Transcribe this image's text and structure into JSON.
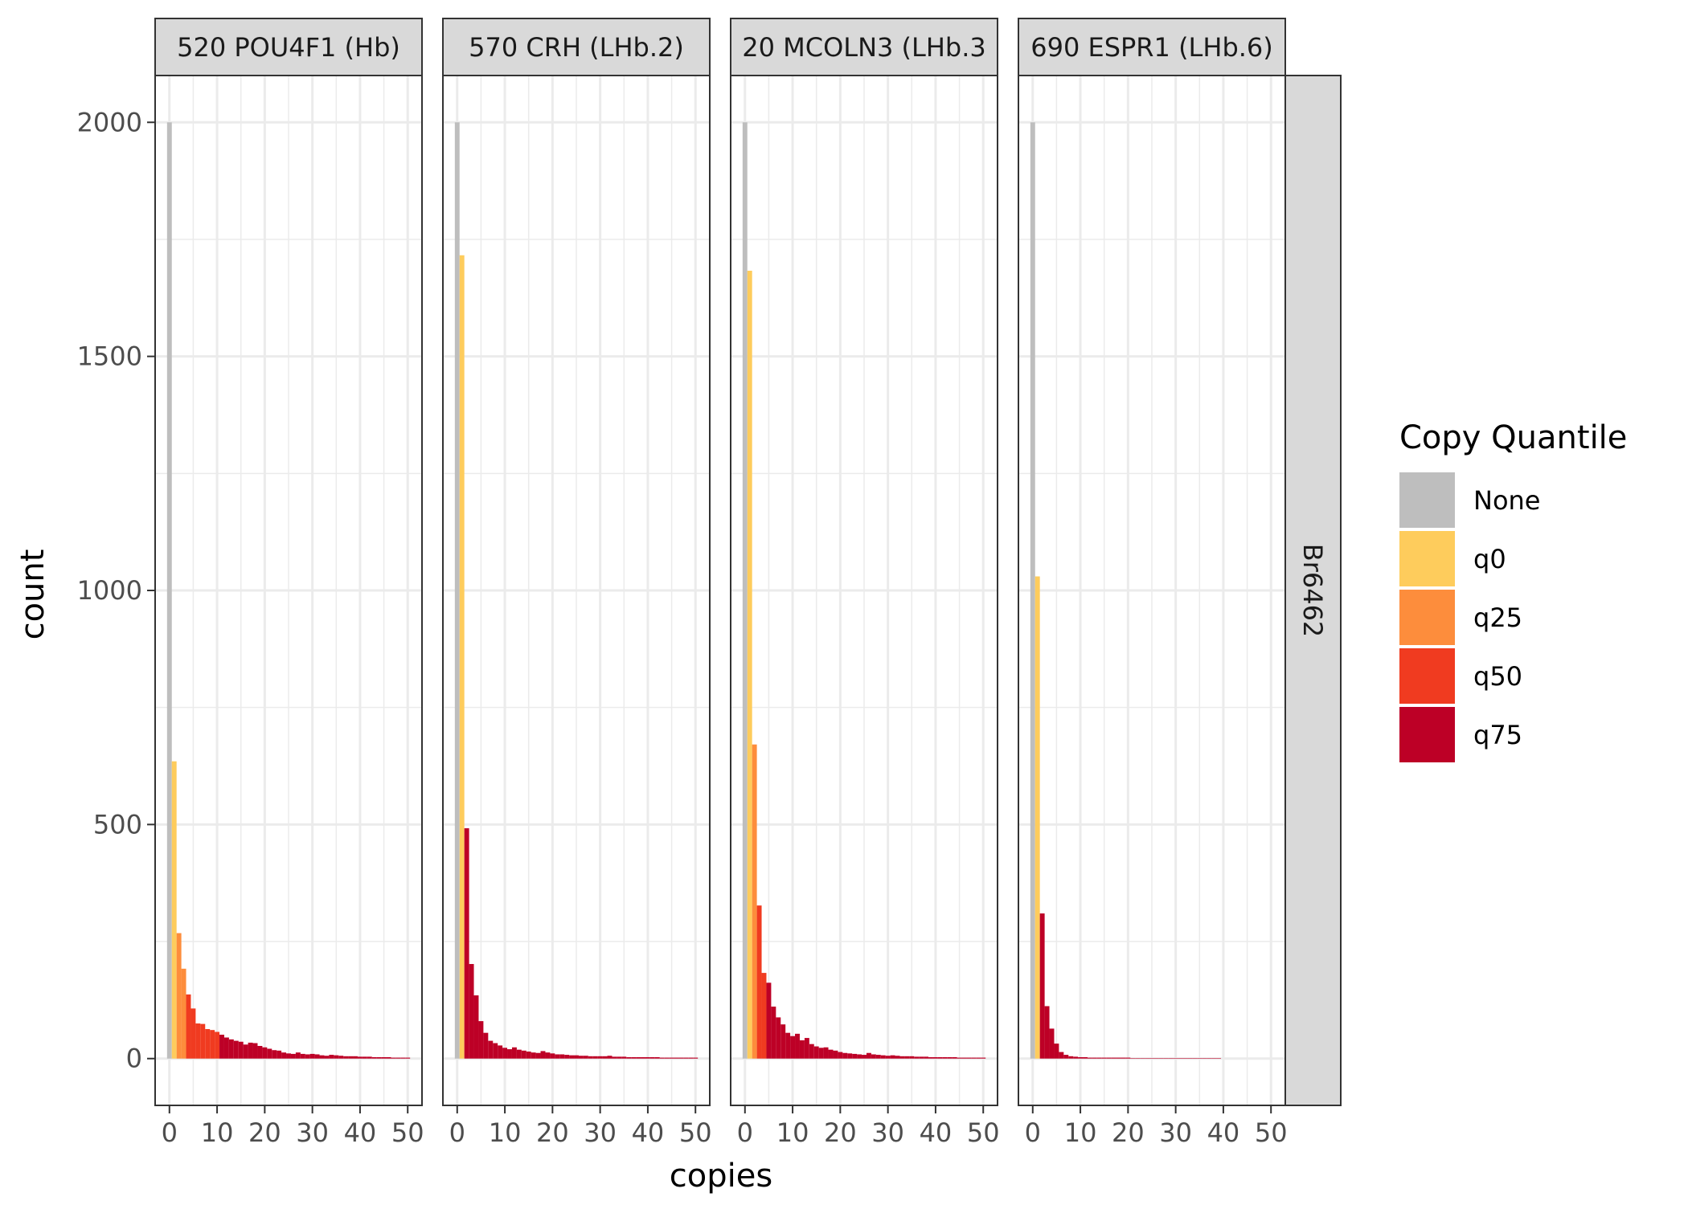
{
  "chart_data": {
    "type": "bar",
    "xlabel": "copies",
    "ylabel": "count",
    "xlim": [
      -3,
      53
    ],
    "ylim": [
      -100,
      2100
    ],
    "x_ticks": [
      0,
      10,
      20,
      30,
      40,
      50
    ],
    "y_ticks": [
      0,
      500,
      1000,
      1500,
      2000
    ],
    "grid": true,
    "row_strip": "Br6462",
    "legend": {
      "title": "Copy Quantile",
      "placement": "right",
      "items": [
        {
          "label": "None",
          "color": "#bebebe"
        },
        {
          "label": "q0",
          "color": "#fecc5c"
        },
        {
          "label": "q25",
          "color": "#fd8d3c"
        },
        {
          "label": "q50",
          "color": "#f03b20"
        },
        {
          "label": "q75",
          "color": "#bd0026"
        }
      ]
    },
    "panels": [
      {
        "title": "520 POU4F1 (Hb)",
        "counts": [
          2000,
          635,
          268,
          192,
          137,
          107,
          75,
          74,
          63,
          61,
          57,
          51,
          45,
          41,
          38,
          36,
          30,
          34,
          33,
          27,
          24,
          21,
          18,
          17,
          13,
          11,
          10,
          13,
          10,
          9,
          10,
          9,
          7,
          6,
          8,
          7,
          6,
          5,
          5,
          5,
          4,
          4,
          4,
          3,
          3,
          3,
          3,
          2,
          2,
          2,
          2
        ],
        "quantiles": [
          "None",
          "q0",
          "q25",
          "q25",
          "q50",
          "q50",
          "q50",
          "q50",
          "q50",
          "q50",
          "q50",
          "q75",
          "q75",
          "q75",
          "q75",
          "q75",
          "q75",
          "q75",
          "q75",
          "q75",
          "q75",
          "q75",
          "q75",
          "q75",
          "q75",
          "q75",
          "q75",
          "q75",
          "q75",
          "q75",
          "q75",
          "q75",
          "q75",
          "q75",
          "q75",
          "q75",
          "q75",
          "q75",
          "q75",
          "q75",
          "q75",
          "q75",
          "q75",
          "q75",
          "q75",
          "q75",
          "q75",
          "q75",
          "q75",
          "q75",
          "q75"
        ]
      },
      {
        "title": "570 CRH (LHb.2)",
        "counts": [
          2000,
          1716,
          492,
          202,
          135,
          80,
          55,
          38,
          33,
          28,
          23,
          20,
          24,
          19,
          17,
          15,
          13,
          12,
          16,
          13,
          11,
          9,
          9,
          8,
          7,
          7,
          6,
          6,
          5,
          5,
          5,
          5,
          6,
          4,
          4,
          4,
          3,
          3,
          3,
          3,
          3,
          3,
          3,
          2,
          2,
          2,
          2,
          2,
          2,
          2,
          2
        ],
        "quantiles": [
          "None",
          "q0",
          "q75",
          "q75",
          "q75",
          "q75",
          "q75",
          "q75",
          "q75",
          "q75",
          "q75",
          "q75",
          "q75",
          "q75",
          "q75",
          "q75",
          "q75",
          "q75",
          "q75",
          "q75",
          "q75",
          "q75",
          "q75",
          "q75",
          "q75",
          "q75",
          "q75",
          "q75",
          "q75",
          "q75",
          "q75",
          "q75",
          "q75",
          "q75",
          "q75",
          "q75",
          "q75",
          "q75",
          "q75",
          "q75",
          "q75",
          "q75",
          "q75",
          "q75",
          "q75",
          "q75",
          "q75",
          "q75",
          "q75",
          "q75",
          "q75"
        ]
      },
      {
        "title": "20 MCOLN3 (LHb.3",
        "counts": [
          2000,
          1683,
          671,
          327,
          183,
          162,
          111,
          88,
          73,
          55,
          48,
          53,
          39,
          44,
          31,
          26,
          23,
          24,
          19,
          17,
          14,
          12,
          11,
          10,
          9,
          8,
          12,
          9,
          8,
          7,
          6,
          7,
          6,
          5,
          5,
          5,
          4,
          4,
          4,
          3,
          3,
          3,
          3,
          3,
          3,
          2,
          2,
          2,
          2,
          2,
          2
        ],
        "quantiles": [
          "None",
          "q0",
          "q25",
          "q50",
          "q50",
          "q75",
          "q75",
          "q75",
          "q75",
          "q75",
          "q75",
          "q75",
          "q75",
          "q75",
          "q75",
          "q75",
          "q75",
          "q75",
          "q75",
          "q75",
          "q75",
          "q75",
          "q75",
          "q75",
          "q75",
          "q75",
          "q75",
          "q75",
          "q75",
          "q75",
          "q75",
          "q75",
          "q75",
          "q75",
          "q75",
          "q75",
          "q75",
          "q75",
          "q75",
          "q75",
          "q75",
          "q75",
          "q75",
          "q75",
          "q75",
          "q75",
          "q75",
          "q75",
          "q75",
          "q75",
          "q75"
        ]
      },
      {
        "title": "690 ESPR1 (LHb.6)",
        "counts": [
          2000,
          1030,
          310,
          112,
          64,
          32,
          14,
          8,
          5,
          4,
          3,
          3,
          2,
          2,
          2,
          2,
          2,
          2,
          2,
          2,
          2,
          1,
          1,
          1,
          1,
          1,
          1,
          1,
          1,
          1,
          1,
          1,
          1,
          1,
          1,
          1,
          1,
          1,
          1,
          1,
          0,
          0,
          0,
          0,
          0,
          0,
          0,
          0,
          0,
          0,
          0
        ],
        "quantiles": [
          "None",
          "q0",
          "q75",
          "q75",
          "q75",
          "q75",
          "q75",
          "q75",
          "q75",
          "q75",
          "q75",
          "q75",
          "q75",
          "q75",
          "q75",
          "q75",
          "q75",
          "q75",
          "q75",
          "q75",
          "q75",
          "q75",
          "q75",
          "q75",
          "q75",
          "q75",
          "q75",
          "q75",
          "q75",
          "q75",
          "q75",
          "q75",
          "q75",
          "q75",
          "q75",
          "q75",
          "q75",
          "q75",
          "q75",
          "q75",
          "q75",
          "q75",
          "q75",
          "q75",
          "q75",
          "q75",
          "q75",
          "q75",
          "q75",
          "q75",
          "q75"
        ]
      }
    ]
  }
}
